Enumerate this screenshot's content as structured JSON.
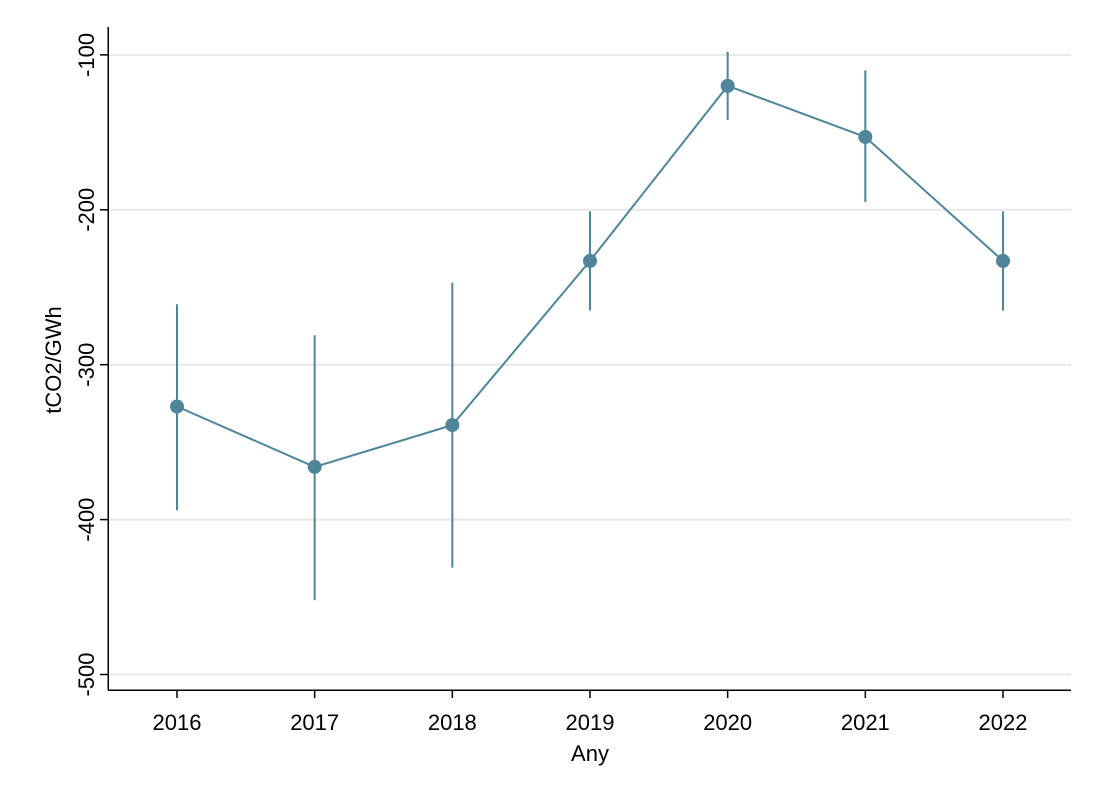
{
  "chart_data": {
    "type": "line",
    "title": "",
    "xlabel": "Any",
    "ylabel": "tCO2/GWh",
    "categories": [
      "2016",
      "2017",
      "2018",
      "2019",
      "2020",
      "2021",
      "2022"
    ],
    "series": [
      {
        "values": [
          -327,
          -366,
          -339,
          -233,
          -120,
          -153,
          -233
        ],
        "error_low": [
          -394,
          -452,
          -431,
          -265,
          -142,
          -195,
          -265
        ],
        "error_high": [
          -261,
          -281,
          -247,
          -201,
          -98,
          -110,
          -201
        ]
      }
    ],
    "ylim": [
      -510,
      -82
    ],
    "yticks": [
      -100,
      -200,
      -300,
      -400,
      -500
    ],
    "ytick_labels": [
      "-100",
      "-200",
      "-300",
      "-400",
      "-500"
    ],
    "grid": true,
    "legend": "none",
    "colors": {
      "series": "#4f8599",
      "grid": "#e7e7e7",
      "axis": "#000000"
    }
  }
}
